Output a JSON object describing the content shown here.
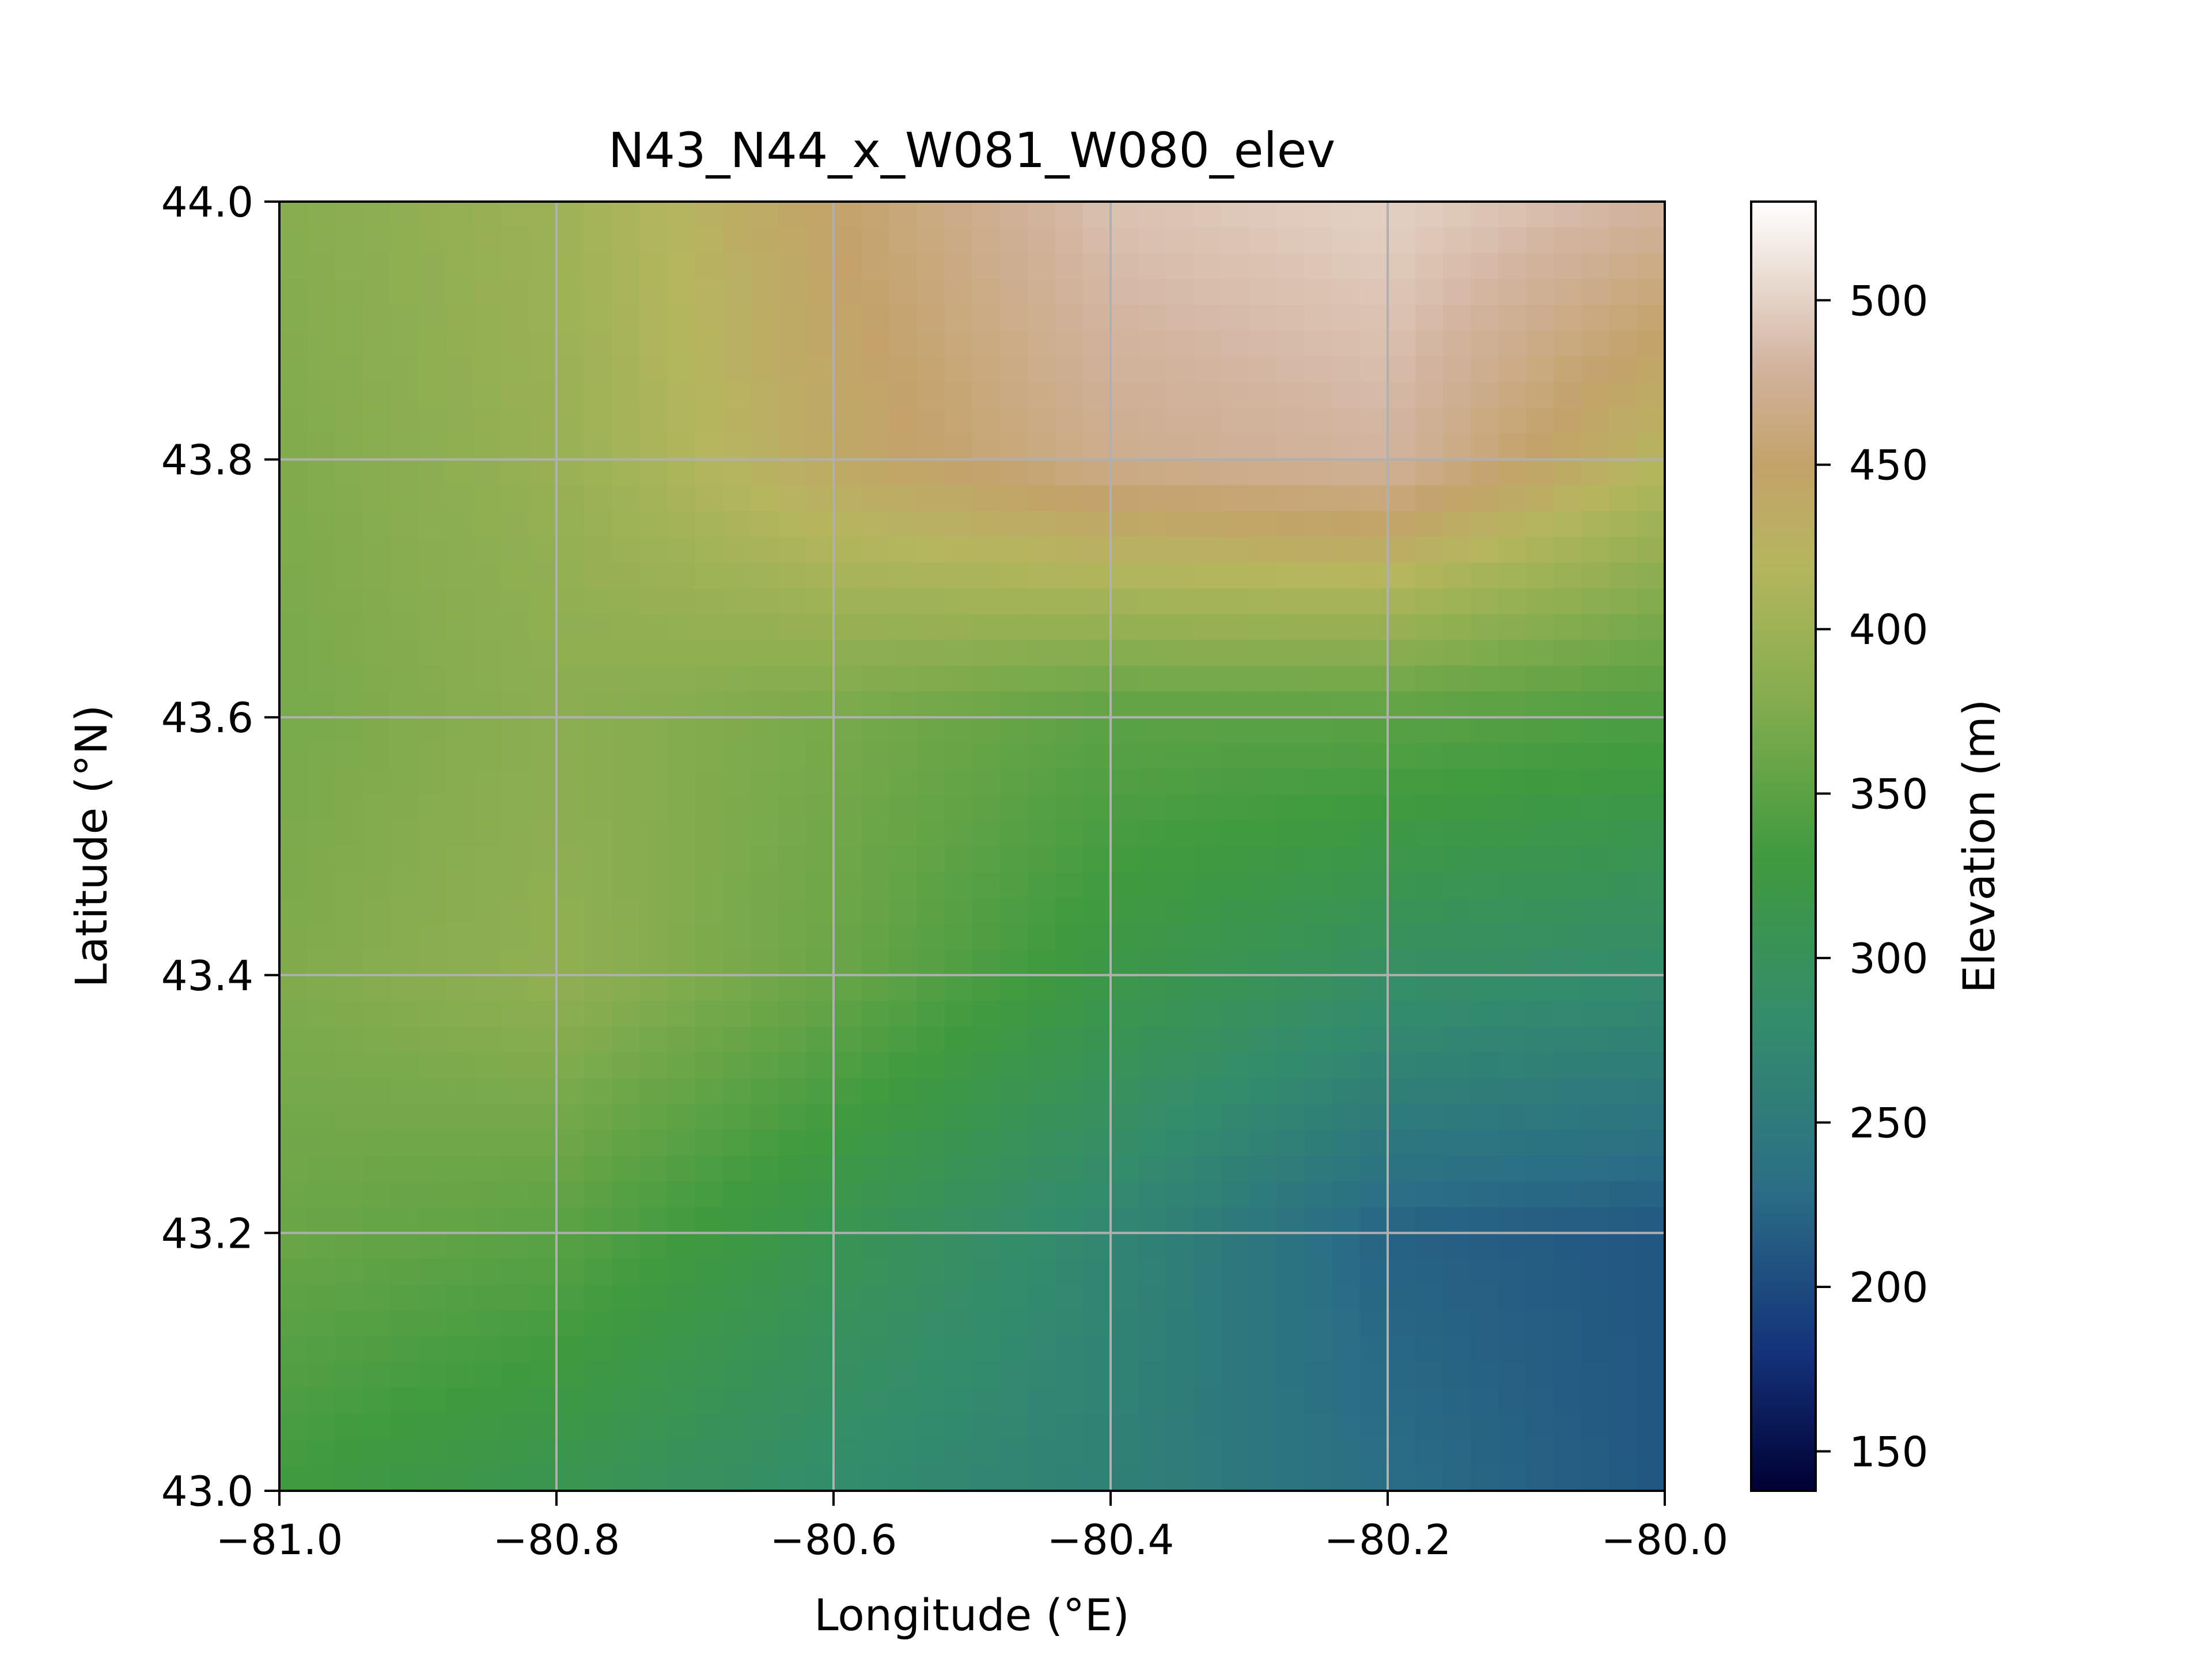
{
  "chart_data": {
    "type": "heatmap",
    "title": "N43_N44_x_W081_W080_elev",
    "xlabel": "Longitude (°E)",
    "ylabel": "Latitude (°N)",
    "xlim": [
      -81.0,
      -80.0
    ],
    "ylim": [
      43.0,
      44.0
    ],
    "x_ticks": [
      -81.0,
      -80.8,
      -80.6,
      -80.4,
      -80.2,
      -80.0
    ],
    "x_tick_labels": [
      "−81.0",
      "−80.8",
      "−80.6",
      "−80.4",
      "−80.2",
      "−80.0"
    ],
    "y_ticks": [
      43.0,
      43.2,
      43.4,
      43.6,
      43.8,
      44.0
    ],
    "y_tick_labels": [
      "43.0",
      "43.2",
      "43.4",
      "43.6",
      "43.8",
      "44.0"
    ],
    "grid": true,
    "colorbar": {
      "label": "Elevation (m)",
      "range": [
        138,
        530
      ],
      "ticks": [
        150,
        200,
        250,
        300,
        350,
        400,
        450,
        500
      ],
      "tick_labels": [
        "150",
        "200",
        "250",
        "300",
        "350",
        "400",
        "450",
        "500"
      ],
      "colormap": "gist_earth-like",
      "stops": [
        {
          "value": 138,
          "color": "#000033"
        },
        {
          "value": 180,
          "color": "#14327a"
        },
        {
          "value": 230,
          "color": "#2b6e86"
        },
        {
          "value": 280,
          "color": "#338c6c"
        },
        {
          "value": 330,
          "color": "#3f9a3f"
        },
        {
          "value": 380,
          "color": "#86ad4e"
        },
        {
          "value": 420,
          "color": "#b5b65e"
        },
        {
          "value": 450,
          "color": "#c4a26a"
        },
        {
          "value": 480,
          "color": "#d2b39e"
        },
        {
          "value": 530,
          "color": "#ffffff"
        }
      ]
    },
    "elevation_grid": {
      "lon": [
        -81.0,
        -80.8,
        -80.6,
        -80.4,
        -80.2,
        -80.0
      ],
      "lat": [
        44.0,
        43.8,
        43.6,
        43.4,
        43.2,
        43.0
      ],
      "values": [
        [
          380,
          400,
          450,
          490,
          500,
          480
        ],
        [
          375,
          395,
          440,
          470,
          480,
          420
        ],
        [
          370,
          385,
          370,
          350,
          350,
          340
        ],
        [
          375,
          390,
          360,
          320,
          290,
          280
        ],
        [
          360,
          350,
          310,
          270,
          220,
          210
        ],
        [
          330,
          310,
          280,
          260,
          230,
          210
        ]
      ]
    }
  }
}
